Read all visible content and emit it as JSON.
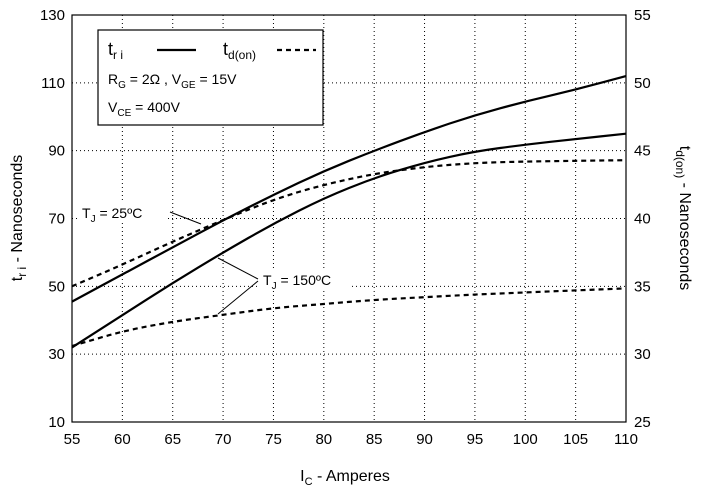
{
  "chart_data": {
    "type": "line",
    "xlabel": {
      "main": "I",
      "sub": "C",
      "rest": " - Amperes"
    },
    "ylabel_left": {
      "main": "t",
      "sub": "r i",
      "rest": " - Nanoseconds"
    },
    "ylabel_right": {
      "main": "t",
      "sub": "d(on)",
      "rest": " - Nanoseconds"
    },
    "xlim": [
      55,
      110
    ],
    "ylim_left": [
      10,
      130
    ],
    "ylim_right": [
      25,
      55
    ],
    "x_ticks": [
      "55",
      "60",
      "65",
      "70",
      "75",
      "80",
      "85",
      "90",
      "95",
      "100",
      "105",
      "110"
    ],
    "y_left_ticks": [
      "10",
      "30",
      "50",
      "70",
      "90",
      "110",
      "130"
    ],
    "y_right_ticks": [
      "25",
      "30",
      "35",
      "40",
      "45",
      "50",
      "55"
    ],
    "grid": true,
    "legend": {
      "tri_main": "t",
      "tri_sub": "r i",
      "td_main": "t",
      "td_sub": "d(on)",
      "cond1_a": "R",
      "cond1_a_sub": "G",
      "cond1_b": " = 2Ω ,  V",
      "cond1_b_sub": "GE",
      "cond1_c": " = 15V",
      "cond2_a": "V",
      "cond2_a_sub": "CE",
      "cond2_b": " = 400V"
    },
    "annotations": {
      "tj25_main": "T",
      "tj25_sub": "J",
      "tj25_rest": " = 25ºC",
      "tj150_main": "T",
      "tj150_sub": "J",
      "tj150_rest": " = 150ºC"
    },
    "series": [
      {
        "axis": "left",
        "style": "solid",
        "x": [
          55,
          60,
          65,
          70,
          75,
          80,
          85,
          90,
          95,
          100,
          105,
          110
        ],
        "y": [
          45.5,
          53.5,
          61.5,
          69.5,
          77,
          84,
          90,
          95.5,
          100.5,
          104.5,
          108,
          112
        ]
      },
      {
        "axis": "left",
        "style": "solid",
        "x": [
          55,
          60,
          65,
          70,
          75,
          80,
          85,
          90,
          95,
          100,
          105,
          110
        ],
        "y": [
          32,
          41.5,
          51,
          60,
          68.5,
          76,
          82,
          86.5,
          89.8,
          91.8,
          93.4,
          95
        ]
      },
      {
        "axis": "right",
        "style": "dash",
        "x": [
          55,
          60,
          65,
          70,
          75,
          80,
          85,
          90,
          95,
          100,
          105,
          110
        ],
        "y": [
          35,
          36.6,
          38.3,
          39.9,
          41.4,
          42.5,
          43.3,
          43.8,
          44.1,
          44.2,
          44.25,
          44.3
        ]
      },
      {
        "axis": "right",
        "style": "dash",
        "x": [
          55,
          60,
          65,
          70,
          75,
          80,
          85,
          90,
          95,
          100,
          105,
          110
        ],
        "y": [
          30.6,
          31.7,
          32.4,
          32.9,
          33.4,
          33.7,
          34,
          34.2,
          34.4,
          34.55,
          34.7,
          34.85
        ]
      }
    ]
  }
}
